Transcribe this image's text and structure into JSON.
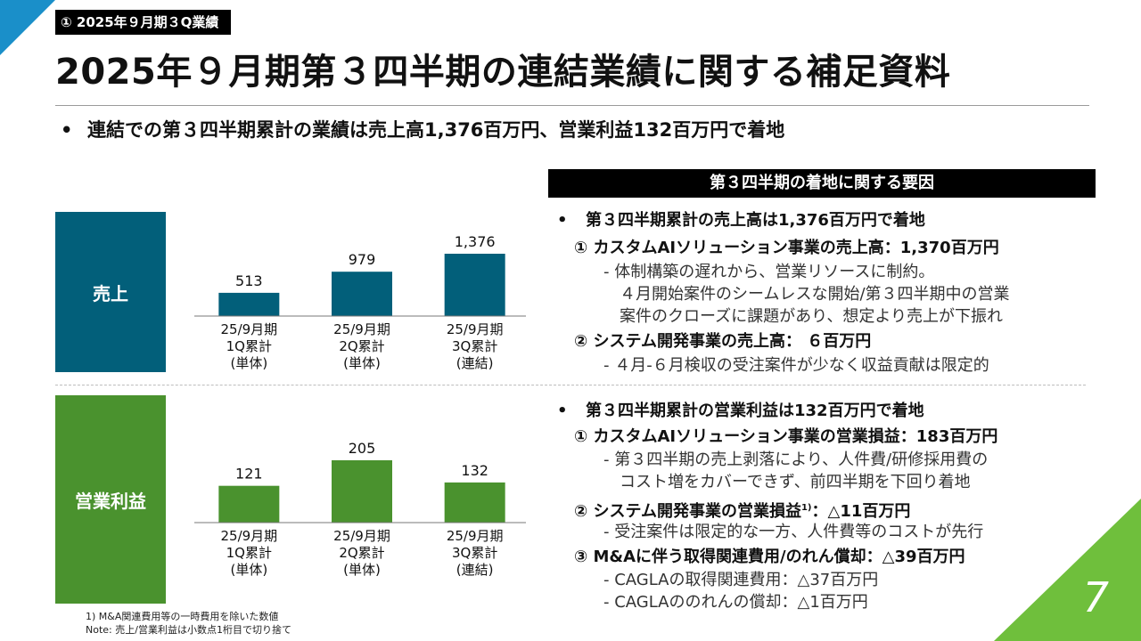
{
  "tag": "① 2025年９月期３Q業績",
  "title": "2025年９月期第３四半期の連結業績に関する補足資料",
  "summary": "連結での第３四半期累計の業績は売上高1,376百万円、営業利益132百万円で着地",
  "bullet": "•",
  "side_labels": {
    "sales": "売上",
    "op": "営業利益"
  },
  "chart_data": [
    {
      "type": "bar",
      "categories": [
        "25/9月期 1Q累計 (単体)",
        "25/9月期 2Q累計 (単体)",
        "25/9月期 3Q累計 (連結)"
      ],
      "category_lines": [
        [
          "25/9月期",
          "1Q累計",
          "(単体)"
        ],
        [
          "25/9月期",
          "2Q累計",
          "(単体)"
        ],
        [
          "25/9月期",
          "3Q累計",
          "(連結)"
        ]
      ],
      "values": [
        513,
        979,
        1376
      ],
      "value_labels": [
        "513",
        "979",
        "1,376"
      ],
      "color": "#025f7a",
      "label": "売上"
    },
    {
      "type": "bar",
      "categories": [
        "25/9月期 1Q累計 (単体)",
        "25/9月期 2Q累計 (単体)",
        "25/9月期 3Q累計 (連結)"
      ],
      "category_lines": [
        [
          "25/9月期",
          "1Q累計",
          "(単体)"
        ],
        [
          "25/9月期",
          "2Q累計",
          "(単体)"
        ],
        [
          "25/9月期",
          "3Q累計",
          "(連結)"
        ]
      ],
      "values": [
        121,
        205,
        132
      ],
      "value_labels": [
        "121",
        "205",
        "132"
      ],
      "color": "#4a922e",
      "label": "営業利益"
    }
  ],
  "footnotes": [
    "1) M&A関連費用等の一時費用を除いた数値",
    "Note: 売上/営業利益は小数点1桁目で切り捨て"
  ],
  "factors": {
    "header": "第３四半期の着地に関する要因",
    "sales": {
      "heading": "第３四半期累計の売上高は1,376百万円で着地",
      "item1": "① カスタムAIソリューション事業の売上高：1,370百万円",
      "item1_detail": [
        "- 体制構築の遅れから、営業リソースに制約。",
        "４月開始案件のシームレスな開始/第３四半期中の営業",
        "案件のクローズに課題があり、想定より売上が下振れ"
      ],
      "item2": "② システム開発事業の売上高： ６百万円",
      "item2_detail": "-  ４月-６月検収の受注案件が少なく収益貢献は限定的"
    },
    "op": {
      "heading": "第３四半期累計の営業利益は132百万円で着地",
      "item1": "① カスタムAIソリューション事業の営業損益：183百万円",
      "item1_detail": [
        "- 第３四半期の売上剥落により、人件費/研修採用費の",
        "コスト増をカバーできず、前四半期を下回り着地"
      ],
      "item2_pre": "② システム開発事業の営業損益",
      "item2_sup": "1)",
      "item2_post": "：△11百万円",
      "item2_detail": "- 受注案件は限定的な一方、人件費等のコストが先行",
      "item3": "③ M&Aに伴う取得関連費用/のれん償却：△39百万円",
      "item3_detail": [
        "-  CAGLAの取得関連費用：△37百万円",
        "-  CAGLAののれんの償却：△1百万円"
      ]
    }
  },
  "page_number": "7"
}
